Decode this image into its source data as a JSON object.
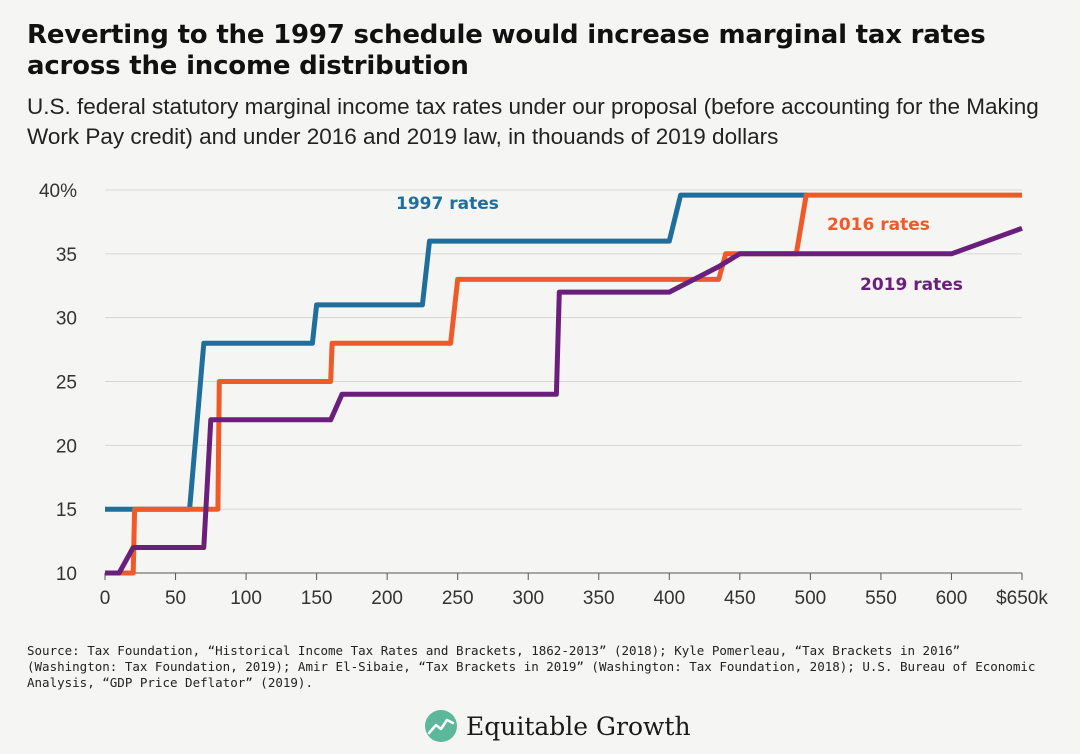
{
  "header": {
    "title": "Reverting to the 1997 schedule would increase marginal tax rates across the income distribution",
    "subtitle": "U.S. federal statutory marginal income tax rates under our proposal (before accounting for the Making Work Pay credit) and under 2016 and 2019 law, in thouands of 2019 dollars"
  },
  "chart_data": {
    "type": "line",
    "title": "",
    "xlabel": "",
    "ylabel": "",
    "xlim": [
      0,
      650
    ],
    "ylim": [
      10,
      40
    ],
    "x_ticks": [
      0,
      50,
      100,
      150,
      200,
      250,
      300,
      350,
      400,
      450,
      500,
      550,
      600,
      650
    ],
    "x_tick_labels": [
      "0",
      "50",
      "100",
      "150",
      "200",
      "250",
      "300",
      "350",
      "400",
      "450",
      "500",
      "550",
      "600",
      "$650k"
    ],
    "y_ticks": [
      10,
      15,
      20,
      25,
      30,
      35,
      40
    ],
    "y_tick_labels": [
      "10",
      "15",
      "20",
      "25",
      "30",
      "35",
      "40%"
    ],
    "grid": true,
    "series": [
      {
        "name": "1997 rates",
        "color": "#1f6e9c",
        "x": [
          0,
          20,
          60,
          70,
          147,
          150,
          225,
          230,
          400,
          408,
          498
        ],
        "y": [
          15,
          15,
          15,
          28,
          28,
          31,
          31,
          36,
          36,
          39.6,
          39.6
        ]
      },
      {
        "name": "2016 rates",
        "color": "#f05a28",
        "x": [
          0,
          20,
          21,
          80,
          81,
          160,
          161,
          245,
          250,
          435,
          440,
          490,
          497,
          650
        ],
        "y": [
          10,
          10,
          15,
          15,
          25,
          25,
          28,
          28,
          33,
          33,
          35,
          35,
          39.6,
          39.6
        ]
      },
      {
        "name": "2019 rates",
        "color": "#6b1f7c",
        "x": [
          0,
          10,
          20,
          70,
          75,
          160,
          168,
          320,
          322,
          400,
          435,
          450,
          600,
          650
        ],
        "y": [
          10,
          10,
          12,
          12,
          22,
          22,
          24,
          24,
          32,
          32,
          34,
          35,
          35,
          37
        ]
      }
    ]
  },
  "source": "Source: Tax Foundation, “Historical Income Tax Rates and Brackets, 1862-2013” (2018); Kyle Pomerleau, “Tax Brackets in 2016” (Washington: Tax Foundation, 2019); Amir El-Sibaie, “Tax Brackets in 2019” (Washington: Tax Foundation, 2018); U.S. Bureau of Economic Analysis, “GDP Price Deflator” (2019).",
  "logo": {
    "text": "Equitable Growth",
    "color": "#5cb89a"
  }
}
